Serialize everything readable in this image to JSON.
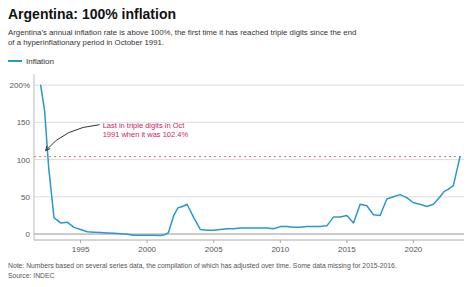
{
  "chart_data": {
    "type": "line",
    "title": "Argentina: 100% inflation",
    "subtitle": "Argentina’s annual inflation rate is above 100%, the first time it has reached triple digits since the end\nof a hyperinflationary period in October 1991.",
    "note": "Note: Numbers based on several series data, the compilation of which has adjusted over time. Some data missing for 2015-2016.\nSource: INDEC",
    "x": [
      1992.0,
      1992.3,
      1992.6,
      1993.0,
      1993.5,
      1994.0,
      1994.5,
      1995.0,
      1995.5,
      1996.0,
      1996.5,
      1997.0,
      1997.5,
      1998.0,
      1998.5,
      1999.0,
      1999.5,
      2000.0,
      2000.5,
      2001.0,
      2001.3,
      2001.6,
      2002.0,
      2002.3,
      2002.8,
      2003.0,
      2003.5,
      2004.0,
      2004.5,
      2005.0,
      2005.5,
      2006.0,
      2006.5,
      2007.0,
      2007.5,
      2008.0,
      2008.5,
      2009.0,
      2009.5,
      2010.0,
      2010.5,
      2011.0,
      2011.5,
      2012.0,
      2012.5,
      2013.0,
      2013.5,
      2014.0,
      2014.5,
      2015.0,
      2015.5,
      2016.0,
      2016.5,
      2017.0,
      2017.5,
      2018.0,
      2018.5,
      2019.0,
      2019.5,
      2020.0,
      2020.5,
      2021.0,
      2021.5,
      2022.0,
      2022.3,
      2022.6,
      2023.0,
      2023.5
    ],
    "series": [
      {
        "name": "Inflation",
        "color": "#2999c9",
        "values": [
          200,
          165,
          90,
          22,
          15,
          16,
          9,
          6,
          3,
          2.5,
          2,
          1.5,
          1,
          0.5,
          -0.3,
          -1.5,
          -1.5,
          -1.5,
          -1.5,
          -2,
          -1,
          2,
          25,
          35,
          38,
          40,
          22,
          6,
          5,
          5,
          6,
          7,
          7,
          8,
          8,
          8,
          8,
          8,
          7,
          10,
          10,
          9,
          9,
          10,
          10,
          10,
          11,
          23,
          23,
          25,
          15,
          40,
          38,
          26,
          25,
          47,
          50,
          53,
          49,
          42,
          40,
          37,
          40,
          50,
          57,
          60,
          65,
          104
        ]
      }
    ],
    "xlim": [
      1991.5,
      2023.8
    ],
    "ylim": [
      -8,
      215
    ],
    "xticks": [
      1995,
      2000,
      2005,
      2010,
      2015,
      2020
    ],
    "yticks": [
      0,
      50,
      100,
      150,
      {
        "value": 200,
        "label": "200%"
      }
    ],
    "grid": true,
    "legend": "upper left",
    "ref_lines": [
      {
        "y": 104,
        "color": "#e07070"
      }
    ],
    "annotations": [
      {
        "text": "Last in triple digits in Oct\n1991 when it was 102.4%",
        "x": 1992.15,
        "y": 112,
        "color": "#cc2266"
      }
    ]
  }
}
